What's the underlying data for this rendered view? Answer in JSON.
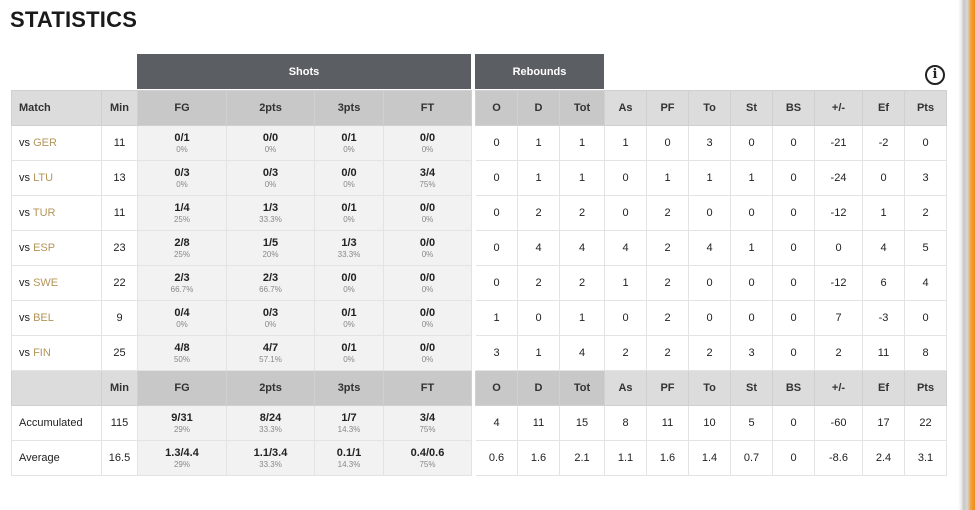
{
  "title": "STATISTICS",
  "groups": {
    "shots": "Shots",
    "rebounds": "Rebounds"
  },
  "colors": {
    "group_bg": "#5b5f63",
    "opponent_link": "#b3955a",
    "accent_bar": "#f08a17"
  },
  "icons": {
    "info": "info-icon"
  },
  "info_glyph": "i",
  "headers": {
    "match": "Match",
    "min": "Min",
    "fg": "FG",
    "two": "2pts",
    "three": "3pts",
    "ft": "FT",
    "o": "O",
    "d": "D",
    "tot": "Tot",
    "as": "As",
    "pf": "PF",
    "to": "To",
    "st": "St",
    "bs": "BS",
    "pm": "+/-",
    "ef": "Ef",
    "pts": "Pts"
  },
  "rows": [
    {
      "prefix": "vs ",
      "opp": "GER",
      "min": "11",
      "fg": "0/1",
      "fg_pct": "0%",
      "two": "0/0",
      "two_pct": "0%",
      "three": "0/1",
      "three_pct": "0%",
      "ft": "0/0",
      "ft_pct": "0%",
      "o": "0",
      "d": "1",
      "tot": "1",
      "as": "1",
      "pf": "0",
      "to": "3",
      "st": "0",
      "bs": "0",
      "pm": "-21",
      "ef": "-2",
      "pts": "0"
    },
    {
      "prefix": "vs ",
      "opp": "LTU",
      "min": "13",
      "fg": "0/3",
      "fg_pct": "0%",
      "two": "0/3",
      "two_pct": "0%",
      "three": "0/0",
      "three_pct": "0%",
      "ft": "3/4",
      "ft_pct": "75%",
      "o": "0",
      "d": "1",
      "tot": "1",
      "as": "0",
      "pf": "1",
      "to": "1",
      "st": "1",
      "bs": "0",
      "pm": "-24",
      "ef": "0",
      "pts": "3"
    },
    {
      "prefix": "vs ",
      "opp": "TUR",
      "min": "11",
      "fg": "1/4",
      "fg_pct": "25%",
      "two": "1/3",
      "two_pct": "33.3%",
      "three": "0/1",
      "three_pct": "0%",
      "ft": "0/0",
      "ft_pct": "0%",
      "o": "0",
      "d": "2",
      "tot": "2",
      "as": "0",
      "pf": "2",
      "to": "0",
      "st": "0",
      "bs": "0",
      "pm": "-12",
      "ef": "1",
      "pts": "2"
    },
    {
      "prefix": "vs ",
      "opp": "ESP",
      "min": "23",
      "fg": "2/8",
      "fg_pct": "25%",
      "two": "1/5",
      "two_pct": "20%",
      "three": "1/3",
      "three_pct": "33.3%",
      "ft": "0/0",
      "ft_pct": "0%",
      "o": "0",
      "d": "4",
      "tot": "4",
      "as": "4",
      "pf": "2",
      "to": "4",
      "st": "1",
      "bs": "0",
      "pm": "0",
      "ef": "4",
      "pts": "5"
    },
    {
      "prefix": "vs ",
      "opp": "SWE",
      "min": "22",
      "fg": "2/3",
      "fg_pct": "66.7%",
      "two": "2/3",
      "two_pct": "66.7%",
      "three": "0/0",
      "three_pct": "0%",
      "ft": "0/0",
      "ft_pct": "0%",
      "o": "0",
      "d": "2",
      "tot": "2",
      "as": "1",
      "pf": "2",
      "to": "0",
      "st": "0",
      "bs": "0",
      "pm": "-12",
      "ef": "6",
      "pts": "4"
    },
    {
      "prefix": "vs ",
      "opp": "BEL",
      "min": "9",
      "fg": "0/4",
      "fg_pct": "0%",
      "two": "0/3",
      "two_pct": "0%",
      "three": "0/1",
      "three_pct": "0%",
      "ft": "0/0",
      "ft_pct": "0%",
      "o": "1",
      "d": "0",
      "tot": "1",
      "as": "0",
      "pf": "2",
      "to": "0",
      "st": "0",
      "bs": "0",
      "pm": "7",
      "ef": "-3",
      "pts": "0"
    },
    {
      "prefix": "vs ",
      "opp": "FIN",
      "min": "25",
      "fg": "4/8",
      "fg_pct": "50%",
      "two": "4/7",
      "two_pct": "57.1%",
      "three": "0/1",
      "three_pct": "0%",
      "ft": "0/0",
      "ft_pct": "0%",
      "o": "3",
      "d": "1",
      "tot": "4",
      "as": "2",
      "pf": "2",
      "to": "2",
      "st": "3",
      "bs": "0",
      "pm": "2",
      "ef": "11",
      "pts": "8"
    }
  ],
  "summary": [
    {
      "label": "Accumulated",
      "min": "115",
      "fg": "9/31",
      "fg_pct": "29%",
      "two": "8/24",
      "two_pct": "33.3%",
      "three": "1/7",
      "three_pct": "14.3%",
      "ft": "3/4",
      "ft_pct": "75%",
      "o": "4",
      "d": "11",
      "tot": "15",
      "as": "8",
      "pf": "11",
      "to": "10",
      "st": "5",
      "bs": "0",
      "pm": "-60",
      "ef": "17",
      "pts": "22"
    },
    {
      "label": "Average",
      "min": "16.5",
      "fg": "1.3/4.4",
      "fg_pct": "29%",
      "two": "1.1/3.4",
      "two_pct": "33.3%",
      "three": "0.1/1",
      "three_pct": "14.3%",
      "ft": "0.4/0.6",
      "ft_pct": "75%",
      "o": "0.6",
      "d": "1.6",
      "tot": "2.1",
      "as": "1.1",
      "pf": "1.6",
      "to": "1.4",
      "st": "0.7",
      "bs": "0",
      "pm": "-8.6",
      "ef": "2.4",
      "pts": "3.1"
    }
  ]
}
